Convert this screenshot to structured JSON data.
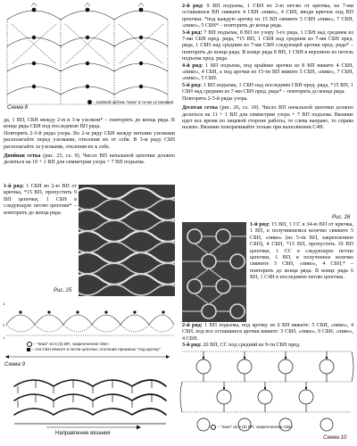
{
  "scheme8": {
    "label": "Схема 8",
    "legend": "- тройной зубчик \"пико\" в точке установки)",
    "text": [
      "да, 1 ВП, СБН между 2-м и 3-м узелком* – повторить до конца ряда. В конце ряда СБН под последнюю ВП ряда.",
      "Повторять 2-3-й ряды узора. Во 2-м ряду СБН между витыми узелками располагайте перед узелками, отклоняя их от себя. В 3-м ряду СБН располагайте за узелками, отклоняя их к себе."
    ]
  },
  "left": {
    "section_title": "Двойная сетка",
    "section_intro": " (рис. 25, сх. 9). Число ВП начальной цепочки должно делиться на 10 + 1 ВП для симметрии узора + 7 ВП подъема.",
    "row1_title": "1-й ряд:",
    "row1_a": " 1 СБН во 2-ю ВП от крючка, *15 ВП, пропустить 9 ВП цепочки, 1 СБН в следующую петлю цепочки* – повторить до конца ряда.",
    "fig25": "Рис. 25"
  },
  "scheme9": {
    "label": "Схема 9",
    "legend1": "\"пико\" из 5 (3) ВП, закрепленное СБН",
    "legend2": "эти СБН вяжите в петли цепочки, отклонив прежнюю \"под арочку\"",
    "direction": "Направление вязания"
  },
  "right": {
    "p1": [
      [
        "2-й ряд:",
        " 9 ВП подъема, 1 СБН во 2-ю петлю от крючка, на 7-ми оставшихся ВП свяжите 4 СБН «пико», 4 СБН, вводя крючок под ВП цепочки. *под каждую арочку из 15 ВП свяжите 5 СБН «пико», 7 СБН, «пико», 5 СБН* – повторить до конца ряда."
      ],
      [
        "3-й ряд:",
        " 7 ВП подъема, 8 ВП по узору 3-го ряда, 1 СБН над средним из 7-ми СБН пред. ряда, *15 ВП, 1 СБН над средним из 7-ми СБН пред. ряда, 1 СБН над средним из 7-ми СБН следующей арочки пред. ряда* – повторить до конца ряда. В конце ряда 8 ВП, 1 СБН в верхнюю из петель подъема пред. ряда."
      ],
      [
        "4-й ряд:",
        " 1 ВП подъема, под крайние арочки из 8 ВП вяжите 4 СБН, «пико», 4 СБН, а под арочки из 15-ти ВП вяжите 5 СБН, «пико», 7 СБН, «пико», 5 СБН."
      ],
      [
        "5-й ряд:",
        " 1 ВП подъема, 1 СБН над последним СБН пред. ряда, *15 ВП, 1 СБН над средним из 7-ми СБН пред. ряда* – повторить до конца ряда."
      ]
    ],
    "p1_end": "Повторять 2-5-й ряды узора.",
    "fig26": "Рис. 26",
    "s2_title": "Десятая сетка",
    "s2_intro": " (рис. 26, сх. 10). Число ВП начальной цепочки должно делиться на 11 + 1 ВП для симметрии узора + 7 ВП подъема. Вязание идет все время по лицевой стороне работы, то слева направо, то справа налево. Вязание поворачивайте только при выполнении С4Н.",
    "s2_row1_title": "1-й ряд:",
    "s2_row1": " 15 ВП, 1 СС в 34-ю ВП от крючка, 1 ВП, в получившемся колечко свяжите 5 СБН, «пико» (из 5-ти ВП, закрепленное СБН), 4 СБН, *15 ВП, пропустить 10 ВП цепочки, 1 СС в следующую петлю цепочки, 1 ВП, в полученное колечко свяжите 5 СБН, «пико», 4 СБН,* – повторить до конца ряда. В конце ряда 6 ВП, 1 С4Н в последнюю петлю цепочки.",
    "s2_row2_title": "2-й ряд:",
    "s2_row2": " 1 ВП подъема, под арочку из 6 ВП вяжите: 5 СБН, «пико», 4 СБН, под все оставшиеся арочки вяжите: 5 СБН, «пико», 9 СБН, «пико», 4 СБН.",
    "s2_row3_title": "3-й ряд:",
    "s2_row3": " 20 ВП, СС под средний из 9-ти СБН пред.",
    "legend10": "\"пико\" из 3 (5) ВП, закрепленное СБН",
    "scheme10": "Схема 10"
  }
}
